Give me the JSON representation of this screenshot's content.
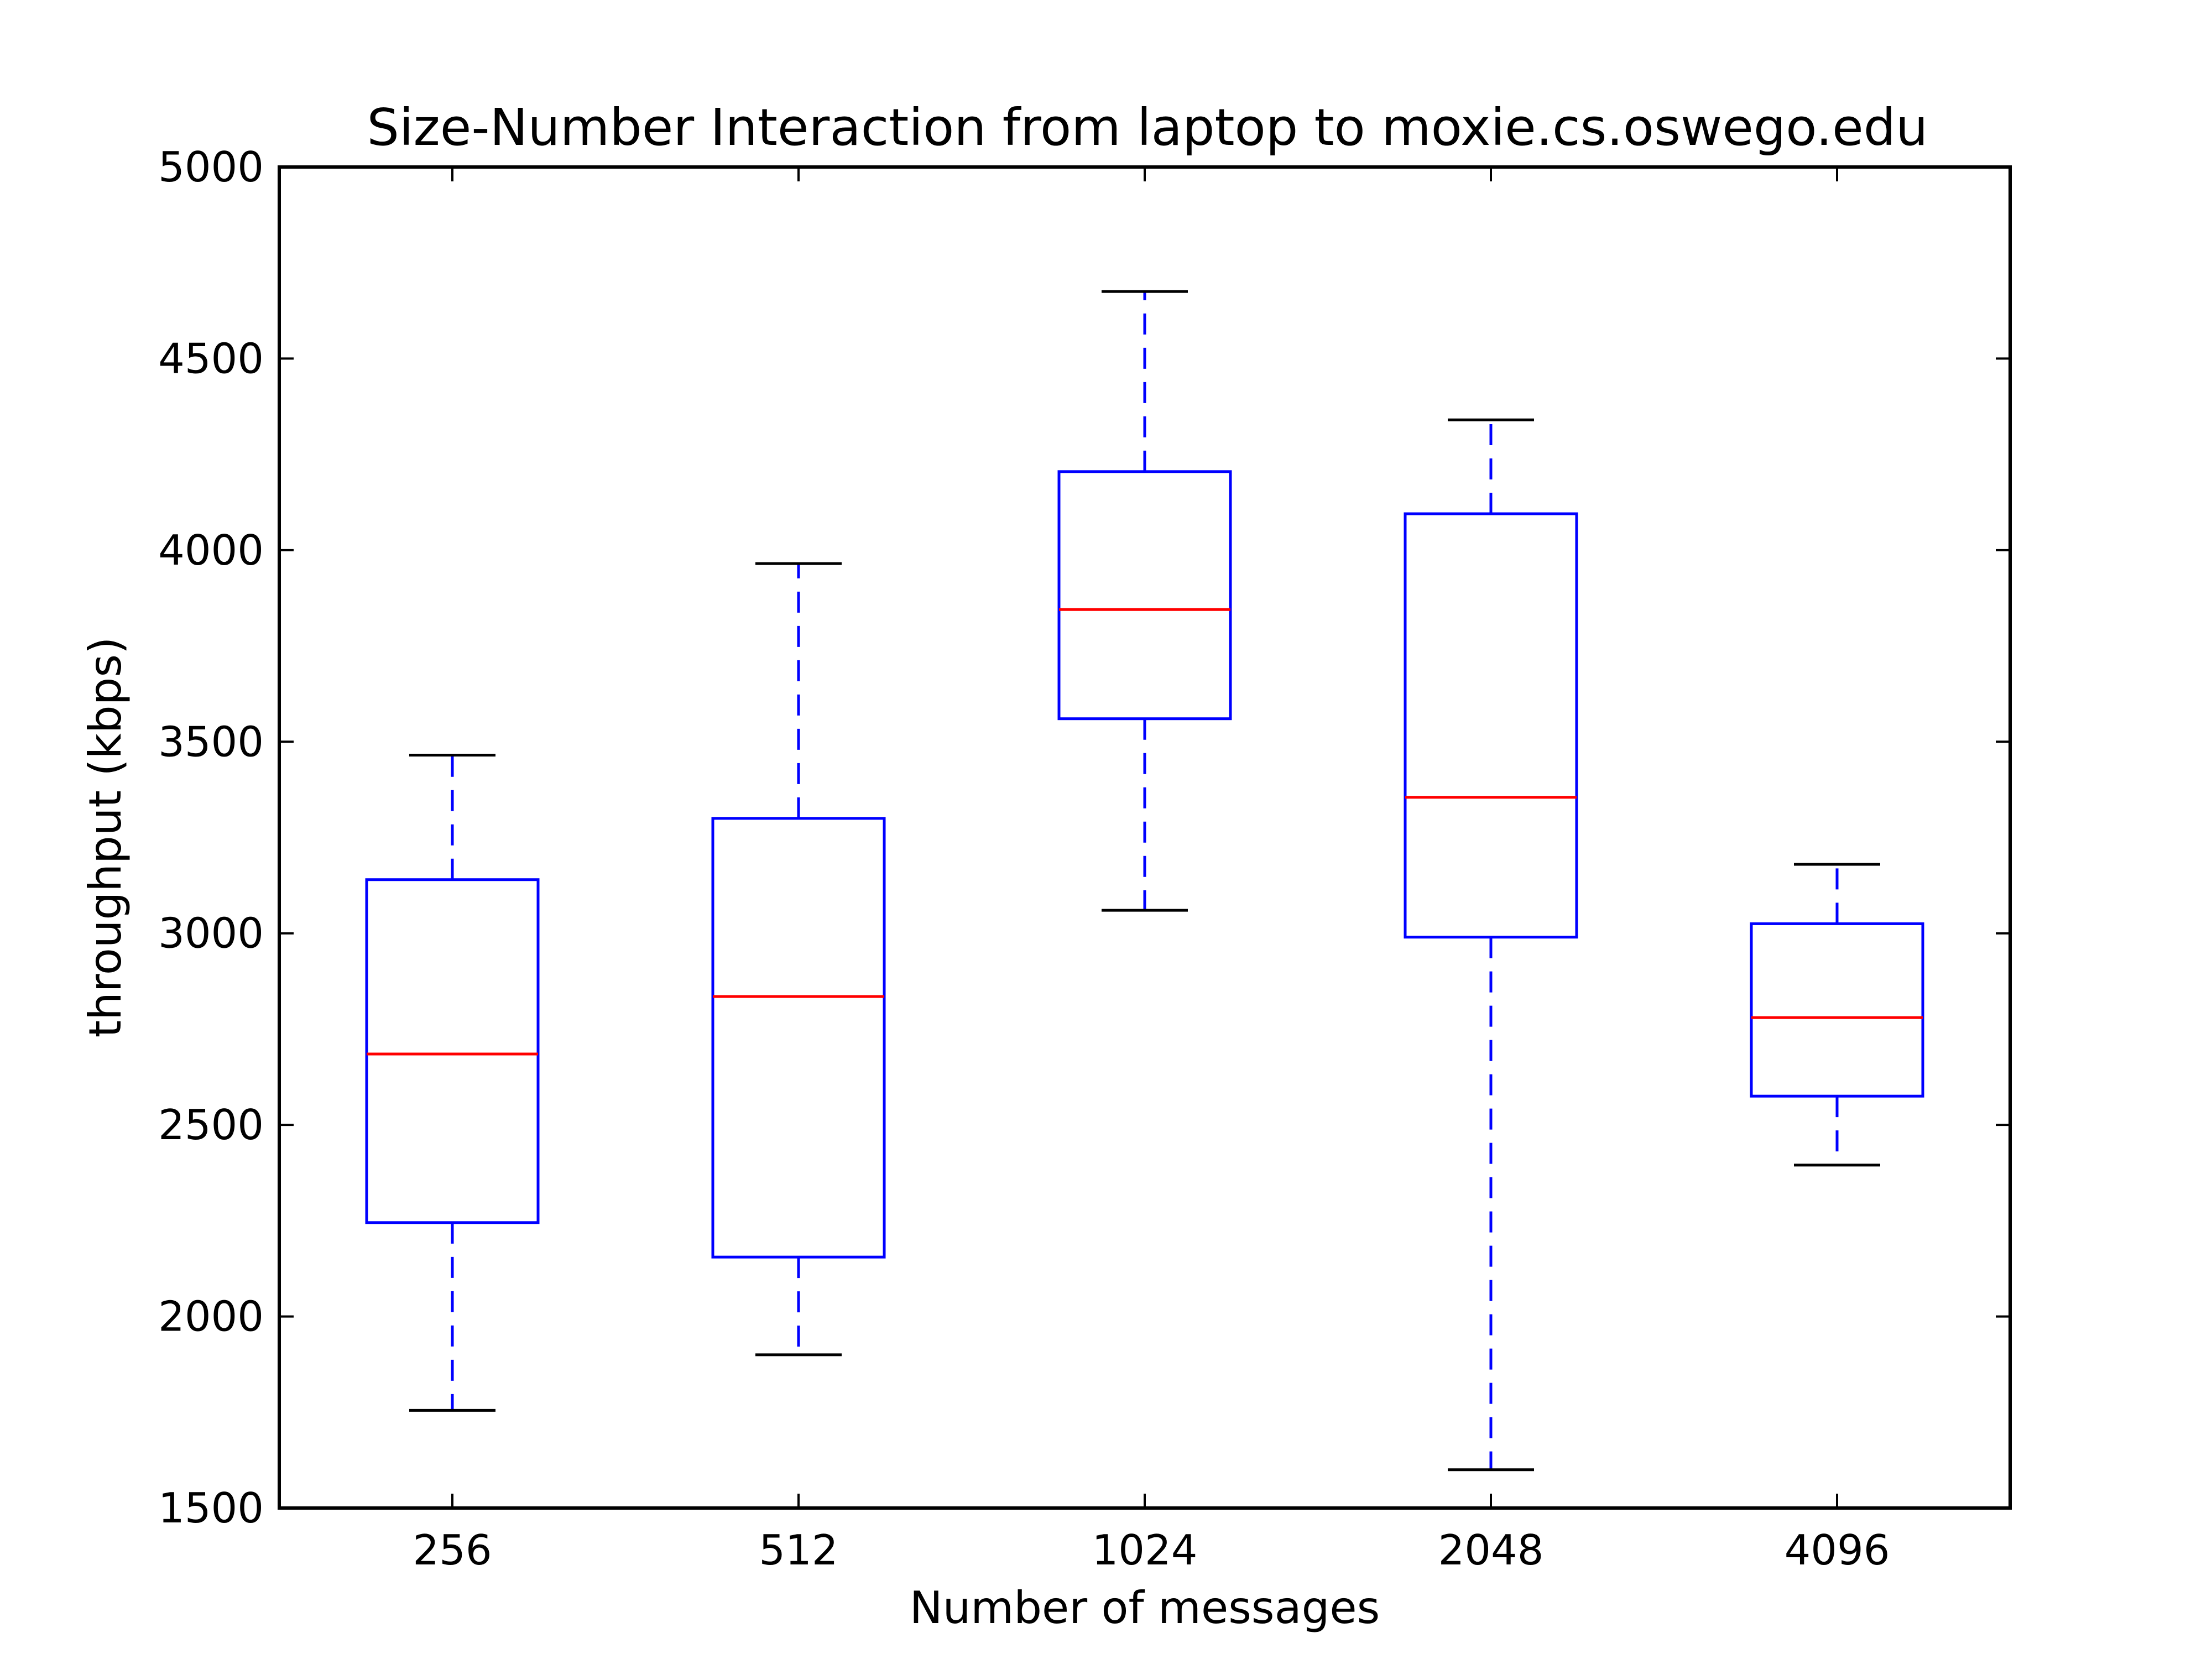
{
  "chart_data": {
    "type": "box",
    "title": "Size-Number Interaction from laptop to moxie.cs.oswego.edu",
    "xlabel": "Number of messages",
    "ylabel": "throughput (kbps)",
    "ylim": [
      1500,
      5000
    ],
    "yticks": [
      "1500",
      "2000",
      "2500",
      "3000",
      "3500",
      "4000",
      "4500",
      "5000"
    ],
    "categories": [
      "256",
      "512",
      "1024",
      "2048",
      "4096"
    ],
    "boxes": [
      {
        "category": "256",
        "whisker_low": 1755,
        "q1": 2245,
        "median": 2685,
        "q3": 3140,
        "whisker_high": 3465
      },
      {
        "category": "512",
        "whisker_low": 1900,
        "q1": 2155,
        "median": 2835,
        "q3": 3300,
        "whisker_high": 3965
      },
      {
        "category": "1024",
        "whisker_low": 3060,
        "q1": 3560,
        "median": 3845,
        "q3": 4205,
        "whisker_high": 4675
      },
      {
        "category": "2048",
        "whisker_low": 1600,
        "q1": 2990,
        "median": 3355,
        "q3": 4095,
        "whisker_high": 4340
      },
      {
        "category": "4096",
        "whisker_low": 2395,
        "q1": 2575,
        "median": 2780,
        "q3": 3025,
        "whisker_high": 3180
      }
    ],
    "grid": false,
    "legend": "none",
    "colors": {
      "box": "#0000ff",
      "median": "#ff0000",
      "whisker": "#0000ff",
      "cap": "#000000",
      "axes": "#000000"
    }
  }
}
